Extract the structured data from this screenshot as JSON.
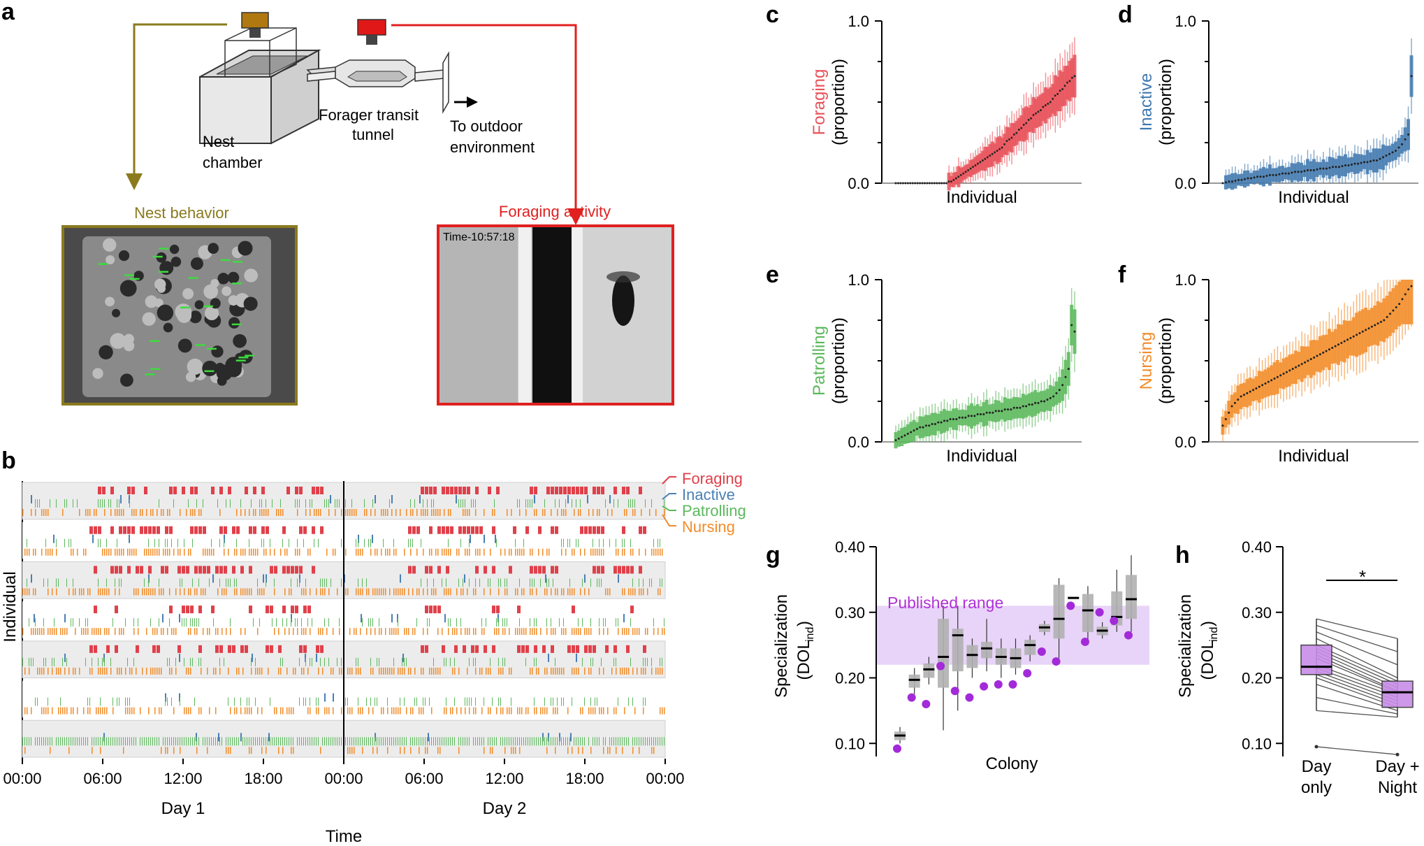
{
  "panels": {
    "a": {
      "label": "a",
      "tunnel_label_1": "Forager transit",
      "tunnel_label_2": "tunnel",
      "nest_label_1": "Nest",
      "nest_label_2": "chamber",
      "outdoor_label_1": "To outdoor",
      "outdoor_label_2": "environment",
      "nest_behavior_title": "Nest behavior",
      "foraging_activity_title": "Foraging activity",
      "camera_timestamp": "Time-10:57:18",
      "colors": {
        "nest": "#8b7a1e",
        "foraging": "#e02020"
      }
    },
    "b": {
      "label": "b",
      "y_label": "Individual",
      "x_label": "Time",
      "day1": "Day 1",
      "day2": "Day 2",
      "ticks": [
        "00:00",
        "06:00",
        "12:00",
        "18:00",
        "00:00",
        "06:00",
        "12:00",
        "18:00",
        "00:00"
      ],
      "legend": [
        {
          "name": "Foraging",
          "color": "#e0404a"
        },
        {
          "name": "Inactive",
          "color": "#4a7fb5"
        },
        {
          "name": "Patrolling",
          "color": "#5cb85c"
        },
        {
          "name": "Nursing",
          "color": "#f28c28"
        }
      ]
    },
    "c": {
      "label": "c",
      "behavior": "Foraging",
      "ylab": "(proportion)",
      "xlab": "Individual",
      "y_top": "1.0",
      "y_bottom": "0.0",
      "color": "#e8525a"
    },
    "d": {
      "label": "d",
      "behavior": "Inactive",
      "ylab": "(proportion)",
      "xlab": "Individual",
      "y_top": "1.0",
      "y_bottom": "0.0",
      "color": "#3f78ae"
    },
    "e": {
      "label": "e",
      "behavior": "Patrolling",
      "ylab": "(proportion)",
      "xlab": "Individual",
      "y_top": "1.0",
      "y_bottom": "0.0",
      "color": "#5cb85c"
    },
    "f": {
      "label": "f",
      "behavior": "Nursing",
      "ylab": "(proportion)",
      "xlab": "Individual",
      "y_top": "1.0",
      "y_bottom": "0.0",
      "color": "#f28c28"
    },
    "g": {
      "label": "g",
      "ylab1": "Specialization",
      "ylab2": "(DOL",
      "ylab_sub": "ind",
      "ylab_close": ")",
      "xlab": "Colony",
      "published_range": "Published range",
      "published_color": "#b030d8"
    },
    "h": {
      "label": "h",
      "ylab1": "Specialization",
      "ylab2": "(DOL",
      "ylab_sub": "ind",
      "ylab_close": ")",
      "significance": "*",
      "cat1_line1": "Day",
      "cat1_line2": "only",
      "cat2_line1": "Day +",
      "cat2_line2": "Night"
    }
  },
  "chart_data": [
    {
      "type": "bar",
      "panel": "c",
      "title": "Foraging",
      "xlabel": "Individual",
      "ylabel": "Foraging (proportion)",
      "ylim": [
        0,
        1
      ],
      "yticks": [
        "0.0",
        "1.0"
      ],
      "values": [
        0,
        0,
        0,
        0,
        0,
        0,
        0,
        0,
        0,
        0,
        0,
        0,
        0,
        0,
        0,
        0,
        0,
        0,
        0,
        0,
        0,
        0,
        0.01,
        0.01,
        0.02,
        0.03,
        0.04,
        0.05,
        0.06,
        0.07,
        0.08,
        0.09,
        0.1,
        0.11,
        0.12,
        0.13,
        0.14,
        0.15,
        0.16,
        0.17,
        0.18,
        0.19,
        0.2,
        0.21,
        0.22,
        0.24,
        0.26,
        0.27,
        0.28,
        0.3,
        0.31,
        0.33,
        0.34,
        0.36,
        0.37,
        0.39,
        0.4,
        0.42,
        0.43,
        0.44,
        0.45,
        0.47,
        0.48,
        0.49,
        0.5,
        0.52,
        0.54,
        0.55,
        0.57,
        0.58,
        0.6,
        0.62,
        0.63,
        0.65,
        0.66
      ]
    },
    {
      "type": "bar",
      "panel": "d",
      "title": "Inactive",
      "xlabel": "Individual",
      "ylabel": "Inactive (proportion)",
      "ylim": [
        0,
        1
      ],
      "yticks": [
        "0.0",
        "1.0"
      ],
      "values": [
        0,
        0.005,
        0.01,
        0.01,
        0.015,
        0.02,
        0.02,
        0.025,
        0.03,
        0.03,
        0.035,
        0.04,
        0.04,
        0.04,
        0.045,
        0.05,
        0.05,
        0.05,
        0.055,
        0.06,
        0.06,
        0.06,
        0.065,
        0.07,
        0.07,
        0.07,
        0.075,
        0.08,
        0.08,
        0.08,
        0.085,
        0.09,
        0.09,
        0.09,
        0.095,
        0.1,
        0.1,
        0.1,
        0.105,
        0.11,
        0.11,
        0.115,
        0.12,
        0.12,
        0.125,
        0.13,
        0.13,
        0.135,
        0.14,
        0.14,
        0.15,
        0.16,
        0.17,
        0.18,
        0.19,
        0.2,
        0.22,
        0.24,
        0.27,
        0.3,
        0.66
      ]
    },
    {
      "type": "bar",
      "panel": "e",
      "title": "Patrolling",
      "xlabel": "Individual",
      "ylabel": "Patrolling (proportion)",
      "ylim": [
        0,
        1
      ],
      "yticks": [
        "0.0",
        "1.0"
      ],
      "values": [
        0.01,
        0.02,
        0.03,
        0.04,
        0.05,
        0.06,
        0.07,
        0.08,
        0.09,
        0.09,
        0.1,
        0.1,
        0.11,
        0.11,
        0.12,
        0.12,
        0.13,
        0.13,
        0.14,
        0.14,
        0.14,
        0.15,
        0.15,
        0.15,
        0.16,
        0.16,
        0.16,
        0.17,
        0.17,
        0.17,
        0.18,
        0.18,
        0.18,
        0.19,
        0.19,
        0.19,
        0.2,
        0.2,
        0.2,
        0.21,
        0.21,
        0.21,
        0.22,
        0.22,
        0.23,
        0.23,
        0.24,
        0.24,
        0.25,
        0.25,
        0.26,
        0.27,
        0.28,
        0.3,
        0.32,
        0.35,
        0.4,
        0.45,
        0.72,
        0.68
      ]
    },
    {
      "type": "bar",
      "panel": "f",
      "title": "Nursing",
      "xlabel": "Individual",
      "ylabel": "Nursing (proportion)",
      "ylim": [
        0,
        1
      ],
      "yticks": [
        "0.0",
        "1.0"
      ],
      "values": [
        0.1,
        0.14,
        0.18,
        0.22,
        0.24,
        0.26,
        0.28,
        0.29,
        0.3,
        0.31,
        0.32,
        0.33,
        0.34,
        0.35,
        0.36,
        0.37,
        0.38,
        0.39,
        0.4,
        0.41,
        0.42,
        0.43,
        0.44,
        0.45,
        0.46,
        0.47,
        0.48,
        0.49,
        0.5,
        0.51,
        0.52,
        0.53,
        0.54,
        0.55,
        0.56,
        0.57,
        0.58,
        0.59,
        0.6,
        0.61,
        0.62,
        0.63,
        0.64,
        0.65,
        0.66,
        0.67,
        0.68,
        0.69,
        0.7,
        0.71,
        0.72,
        0.73,
        0.74,
        0.75,
        0.77,
        0.79,
        0.81,
        0.83,
        0.85,
        0.88,
        0.91,
        0.94,
        0.96
      ]
    },
    {
      "type": "box",
      "panel": "g",
      "xlabel": "Colony",
      "ylabel": "Specialization (DOL_ind)",
      "ylim": [
        0.08,
        0.4
      ],
      "yticks": [
        "0.10",
        "0.20",
        "0.30",
        "0.40"
      ],
      "published_range": [
        0.22,
        0.31
      ],
      "medians": [
        0.112,
        0.197,
        0.213,
        0.232,
        0.265,
        0.235,
        0.245,
        0.232,
        0.23,
        0.25,
        0.277,
        0.29,
        0.322,
        0.303,
        0.272,
        0.293,
        0.32
      ],
      "q1": [
        0.105,
        0.185,
        0.2,
        0.185,
        0.21,
        0.215,
        0.23,
        0.22,
        0.215,
        0.235,
        0.27,
        0.26,
        0.322,
        0.27,
        0.265,
        0.28,
        0.29
      ],
      "q3": [
        0.118,
        0.205,
        0.222,
        0.29,
        0.275,
        0.25,
        0.255,
        0.245,
        0.245,
        0.258,
        0.282,
        0.342,
        0.322,
        0.328,
        0.278,
        0.332,
        0.357
      ],
      "lower_whisker": [
        0.1,
        0.175,
        0.19,
        0.12,
        0.15,
        0.2,
        0.21,
        0.2,
        0.205,
        0.225,
        0.265,
        0.23,
        0.322,
        0.25,
        0.26,
        0.27,
        0.27
      ],
      "upper_whisker": [
        0.125,
        0.215,
        0.232,
        0.31,
        0.31,
        0.26,
        0.29,
        0.26,
        0.26,
        0.265,
        0.287,
        0.352,
        0.322,
        0.34,
        0.285,
        0.365,
        0.387
      ],
      "published_points": [
        0.092,
        0.17,
        0.16,
        0.218,
        0.18,
        0.17,
        0.187,
        0.19,
        0.19,
        0.207,
        0.24,
        0.225,
        0.31,
        0.255,
        0.3,
        0.287,
        0.265
      ]
    },
    {
      "type": "paired-box",
      "panel": "h",
      "ylabel": "Specialization (DOL_ind)",
      "ylim": [
        0.08,
        0.4
      ],
      "yticks": [
        "0.10",
        "0.20",
        "0.30",
        "0.40"
      ],
      "categories": [
        "Day only",
        "Day + Night"
      ],
      "day_only": {
        "median": 0.217,
        "q1": 0.205,
        "q3": 0.25,
        "low": 0.15,
        "high": 0.29,
        "outlier": 0.095
      },
      "day_night": {
        "median": 0.178,
        "q1": 0.155,
        "q3": 0.195,
        "low": 0.14,
        "high": 0.26,
        "outlier": 0.083
      },
      "pairs": [
        [
          0.29,
          0.26
        ],
        [
          0.28,
          0.24
        ],
        [
          0.27,
          0.22
        ],
        [
          0.26,
          0.2
        ],
        [
          0.25,
          0.195
        ],
        [
          0.245,
          0.19
        ],
        [
          0.24,
          0.185
        ],
        [
          0.235,
          0.18
        ],
        [
          0.23,
          0.178
        ],
        [
          0.22,
          0.175
        ],
        [
          0.215,
          0.17
        ],
        [
          0.21,
          0.165
        ],
        [
          0.205,
          0.16
        ],
        [
          0.2,
          0.155
        ],
        [
          0.19,
          0.15
        ],
        [
          0.17,
          0.145
        ],
        [
          0.15,
          0.14
        ],
        [
          0.095,
          0.083
        ]
      ],
      "significance": "*"
    }
  ]
}
